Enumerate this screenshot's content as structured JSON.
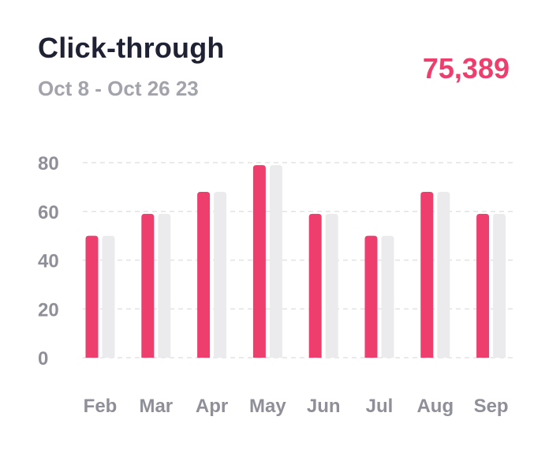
{
  "card": {
    "title": "Click-through",
    "date_range": "Oct 8 - Oct 26 23",
    "total_value": "75,389"
  },
  "colors": {
    "primary_bar": "#ee3e6d",
    "secondary_bar": "#ebebed",
    "gridline": "#e3e3e6",
    "tick_text": "#8f8f99",
    "title_text": "#1f2233",
    "subtitle_text": "#a3a3ab"
  },
  "chart_data": {
    "type": "bar",
    "title": "",
    "xlabel": "",
    "ylabel": "",
    "categories": [
      "Feb",
      "Mar",
      "Apr",
      "May",
      "Jun",
      "Jul",
      "Aug",
      "Sep"
    ],
    "series": [
      {
        "values": [
          50,
          59,
          68,
          79,
          59,
          50,
          68,
          59
        ]
      },
      {
        "values": [
          50,
          59,
          68,
          79,
          59,
          50,
          68,
          59
        ]
      }
    ],
    "ylim": [
      0,
      80
    ],
    "yticks": [
      0,
      20,
      40,
      60,
      80
    ],
    "grid": true,
    "legend": "none"
  }
}
